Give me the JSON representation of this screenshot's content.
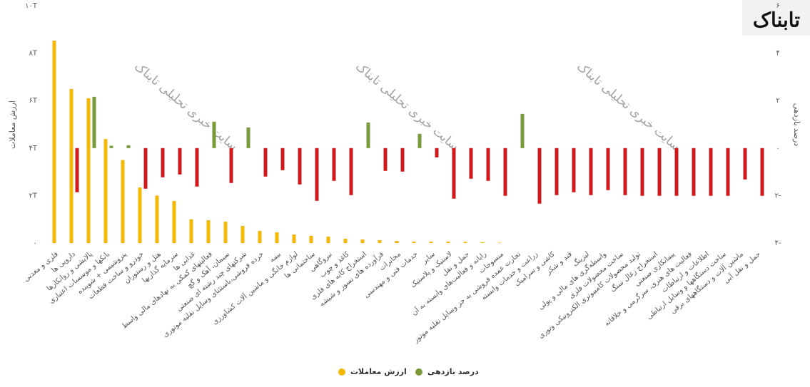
{
  "chart_data": {
    "type": "bar",
    "logo": "تابناک",
    "watermark": "سایت خبری تحلیلی تابناک",
    "ylabel": "ارزش معاملات",
    "y2label": "درصد بازدهی",
    "categories": [
      "فلزی و معدنی",
      "دارویی ها",
      "پالایشی و روانکارها",
      "بانکها و موسسات اعتباری",
      "پتروشیمی + شوینده",
      "خودرو و ساخت قطعات",
      "هتل و رستوران",
      "سرمایه گذاریها",
      "غذایی ها",
      "فعالیتهای کمکی به نهادهای مالی واسط",
      "سیمان، آهک و گچ",
      "شرکتهای چند رشته ای صنعتی",
      "خرده فروشی،باستثنای وسایل نقلیه موتوری",
      "بیمه",
      "لوازم خانگی و ماشین آلات کشاورزی",
      "ساختمانی ها",
      "نیروگاهی",
      "کاغذ و چوب",
      "استخراج کانه های فلزی",
      "فرآورده های نسوز و شیشه",
      "مخابرات",
      "خدمات فنی و مهندسی",
      "سایر",
      "لاستیک و پلاستیک",
      "حمل و نقل",
      "رایانه و فعالیت‌های وابسته به آن",
      "منسوجات",
      "تجارت عمده فروشی به جز وسایل نقلیه موتور",
      "زراعت و خدمات وابسته",
      "کاشی و سرامیک",
      "قند و شکر",
      "لیزینگ",
      "واسطه‌گری های مالی و پولی",
      "ساخت محصولات فلزی",
      "تولید محصولات کامپیوتری الکترونیکی ونوری",
      "استخراج زغال سنگ",
      "پیمانکاری صنعتی",
      "فعالیت های هنری، سرگرمی و خلاقانه",
      "اطلاعات و ارتباطات",
      "ساخت دستگاهها و وسایل ارتباطی",
      "ماشین آلات و دستگاههای برقی",
      "حمل و نقل آبی"
    ],
    "series": [
      {
        "name": "ارزش معاملات",
        "color": "#f5b800",
        "axis": "y",
        "values": [
          8.53,
          6.49,
          6.1,
          4.38,
          3.5,
          2.34,
          2.0,
          1.77,
          1.0,
          0.96,
          0.9,
          0.72,
          0.51,
          0.45,
          0.36,
          0.3,
          0.27,
          0.18,
          0.15,
          0.12,
          0.09,
          0.06,
          0.06,
          0.06,
          0.05,
          0.03,
          0.02,
          0,
          0,
          0,
          0,
          0,
          0,
          0,
          0,
          0,
          0,
          0,
          0,
          0,
          0,
          0
        ]
      },
      {
        "name": "درصد بازدهی",
        "color": "#7a9a3a",
        "negative_color": "#d0181b",
        "axis": "y2",
        "values": [
          null,
          -1.86,
          2.16,
          0.1,
          0.12,
          -1.71,
          -1.23,
          -1.11,
          -1.62,
          1.11,
          -1.47,
          0.87,
          -1.2,
          -0.93,
          -1.53,
          -2.22,
          -1.38,
          -1.98,
          1.08,
          -0.96,
          -0.99,
          0.6,
          -0.39,
          -2.13,
          -1.29,
          -1.38,
          -2.01,
          1.44,
          -2.34,
          -1.98,
          -1.86,
          -1.98,
          -1.77,
          -1.98,
          -2.01,
          -2.01,
          -2.01,
          -2.01,
          -2.01,
          -2.01,
          -1.32,
          -2.01
        ]
      }
    ],
    "ylim": [
      0,
      10
    ],
    "yticks": [
      {
        "value": 0,
        "label": "۰"
      },
      {
        "value": 2,
        "label": "۲T"
      },
      {
        "value": 4,
        "label": "۴T"
      },
      {
        "value": 6,
        "label": "۶T"
      },
      {
        "value": 8,
        "label": "۸T"
      },
      {
        "value": 10,
        "label": "۱۰T"
      }
    ],
    "y2lim": [
      -4,
      6
    ],
    "y2ticks": [
      {
        "value": -4,
        "label": "۴-"
      },
      {
        "value": -2,
        "label": "۲-"
      },
      {
        "value": 0,
        "label": "۰"
      },
      {
        "value": 2,
        "label": "۲"
      },
      {
        "value": 4,
        "label": "۴"
      },
      {
        "value": 6,
        "label": "۶"
      }
    ],
    "grid": false
  }
}
